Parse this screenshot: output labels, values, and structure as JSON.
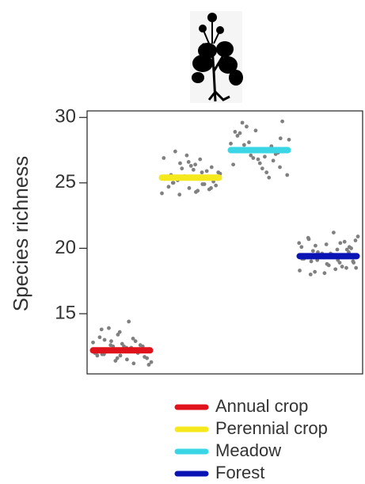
{
  "chart_data": {
    "type": "strip",
    "ylabel": "Species richness",
    "ylim": [
      10.4,
      30.5
    ],
    "yticks": [
      15,
      20,
      25,
      30
    ],
    "series": [
      {
        "name": "Annual crop",
        "color": "#e0121b",
        "mean": 12.2,
        "values": [
          12.1,
          11.8,
          12.5,
          13.0,
          11.5,
          12.3,
          12.9,
          11.2,
          12.0,
          13.4,
          12.6,
          11.9,
          12.2,
          11.6,
          13.9,
          12.4,
          12.8,
          11.4,
          12.0,
          13.2,
          12.7,
          11.7,
          12.1,
          14.4,
          11.3,
          12.5,
          12.9,
          11.8,
          13.6,
          12.2,
          11.9,
          12.4,
          11.1,
          12.6,
          13.1,
          12.0,
          11.6,
          12.3,
          13.8,
          12.5
        ]
      },
      {
        "name": "Perennial crop",
        "color": "#f5e81c",
        "mean": 25.4,
        "values": [
          25.4,
          24.6,
          26.2,
          25.0,
          24.3,
          25.8,
          26.5,
          24.9,
          25.3,
          27.1,
          24.5,
          25.6,
          26.0,
          24.8,
          25.2,
          26.8,
          24.2,
          25.5,
          25.9,
          24.7,
          26.3,
          25.1,
          27.4,
          24.4,
          25.7,
          26.1,
          24.9,
          25.4,
          26.6,
          24.6,
          25.0,
          26.4,
          25.3,
          24.1,
          25.8,
          26.9
        ]
      },
      {
        "name": "Meadow",
        "color": "#3ad6e6",
        "mean": 27.5,
        "values": [
          27.5,
          26.8,
          28.4,
          29.6,
          27.0,
          25.6,
          28.1,
          27.8,
          26.4,
          29.0,
          27.3,
          28.8,
          26.1,
          27.6,
          29.3,
          25.4,
          28.0,
          26.9,
          27.2,
          28.6,
          26.5,
          29.7,
          27.9,
          25.8,
          28.3,
          27.1,
          26.7,
          28.9,
          27.4,
          26.2
        ]
      },
      {
        "name": "Forest",
        "color": "#0a14b4",
        "mean": 19.4,
        "values": [
          19.4,
          18.8,
          20.1,
          19.0,
          21.2,
          18.5,
          19.7,
          20.4,
          19.2,
          18.1,
          19.9,
          20.7,
          19.5,
          18.9,
          20.2,
          19.1,
          18.3,
          19.6,
          20.5,
          19.3,
          18.7,
          20.0,
          19.8,
          18.4,
          20.9,
          19.4,
          18.6,
          19.2,
          20.3,
          19.7,
          18.0,
          19.5,
          20.6,
          19.1,
          18.9,
          20.1,
          19.3,
          18.5,
          20.8,
          19.6,
          19.0,
          18.2,
          19.9,
          20.4
        ]
      }
    ]
  }
}
